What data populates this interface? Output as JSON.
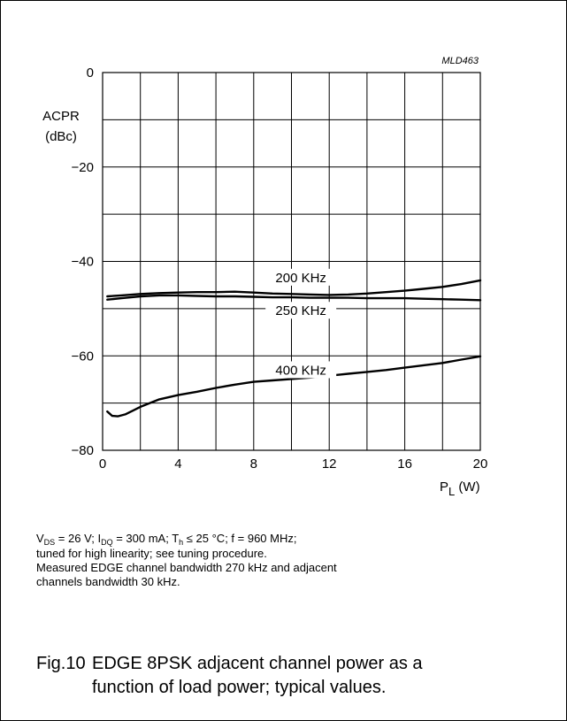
{
  "chart_data": {
    "type": "line",
    "figure_id": "MLD463",
    "ylabel": "ACPR",
    "yunit": "(dBc)",
    "xlabel": "P",
    "xlabel_sub": "L",
    "xunit": "(W)",
    "xlim": [
      0,
      20
    ],
    "ylim": [
      -80,
      0
    ],
    "x_ticks": [
      "0",
      "4",
      "8",
      "12",
      "16",
      "20"
    ],
    "y_ticks": [
      "0",
      "−20",
      "−40",
      "−60",
      "−80"
    ],
    "grid": true,
    "series": [
      {
        "name": "200 KHz",
        "x": [
          0.25,
          1,
          2,
          3,
          4,
          5,
          6,
          7,
          8,
          9,
          10,
          11,
          12,
          13,
          14,
          15,
          16,
          17,
          18,
          19,
          20
        ],
        "y": [
          -47.4,
          -47.2,
          -46.9,
          -46.7,
          -46.6,
          -46.5,
          -46.5,
          -46.4,
          -46.6,
          -46.8,
          -46.9,
          -47.0,
          -47.1,
          -47.0,
          -46.8,
          -46.5,
          -46.2,
          -45.8,
          -45.4,
          -44.8,
          -44.0
        ]
      },
      {
        "name": "250 KHz",
        "x": [
          0.25,
          1,
          2,
          3,
          4,
          5,
          6,
          7,
          8,
          9,
          10,
          11,
          12,
          13,
          14,
          15,
          16,
          17,
          18,
          19,
          20
        ],
        "y": [
          -48.1,
          -47.8,
          -47.4,
          -47.2,
          -47.2,
          -47.3,
          -47.4,
          -47.4,
          -47.5,
          -47.6,
          -47.6,
          -47.7,
          -47.7,
          -47.7,
          -47.8,
          -47.8,
          -47.8,
          -47.9,
          -48.0,
          -48.1,
          -48.2
        ]
      },
      {
        "name": "400 KHz",
        "x": [
          0.25,
          0.5,
          0.8,
          1.2,
          1.6,
          2,
          3,
          4,
          5,
          6,
          7,
          8,
          9,
          10,
          11,
          12,
          13,
          14,
          15,
          16,
          17,
          18,
          19,
          20
        ],
        "y": [
          -71.8,
          -72.7,
          -72.8,
          -72.4,
          -71.6,
          -70.8,
          -69.2,
          -68.3,
          -67.6,
          -66.8,
          -66.1,
          -65.5,
          -65.2,
          -64.9,
          -64.6,
          -64.2,
          -63.8,
          -63.4,
          -63.0,
          -62.5,
          -62.0,
          -61.5,
          -60.8,
          -60.1
        ]
      }
    ]
  },
  "notes": {
    "cond_vds": "V",
    "cond_vds_sub": "DS",
    "cond_vds_val": " = 26 V; I",
    "cond_idq_sub": "DQ",
    "cond_idq_val": " = 300 mA; T",
    "cond_th_sub": "h",
    "cond_rest": " ≤ 25 °C; f = 960 MHz;",
    "line2": "tuned for high linearity; see tuning procedure.",
    "line3": "Measured EDGE channel bandwidth 270 kHz and adjacent",
    "line4": "channels bandwidth 30 kHz."
  },
  "caption": {
    "label": "Fig.10",
    "line1": "EDGE 8PSK adjacent channel power as a",
    "line2": "function of load power; typical values."
  }
}
